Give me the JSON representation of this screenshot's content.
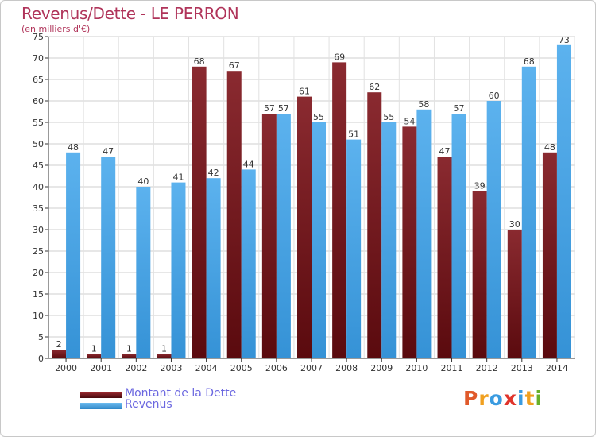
{
  "chart_data": {
    "type": "bar",
    "title": "Revenus/Dette - LE PERRON",
    "subtitle": "(en milliers d'€)",
    "xlabel": "",
    "ylabel": "",
    "categories": [
      "2000",
      "2001",
      "2002",
      "2003",
      "2004",
      "2005",
      "2006",
      "2007",
      "2008",
      "2009",
      "2010",
      "2011",
      "2012",
      "2013",
      "2014"
    ],
    "series": [
      {
        "name": "Montant de la Dette",
        "color": "#7a1a1f",
        "values": [
          2,
          1,
          1,
          1,
          68,
          67,
          57,
          61,
          69,
          62,
          54,
          47,
          39,
          30,
          48
        ]
      },
      {
        "name": "Revenus",
        "color": "#4da6e6",
        "values": [
          48,
          47,
          40,
          41,
          42,
          44,
          57,
          55,
          51,
          55,
          58,
          57,
          60,
          68,
          73
        ]
      }
    ],
    "ylim": [
      0,
      75
    ],
    "ytick_step": 5,
    "grid": true,
    "legend": "bottom-left"
  },
  "logo": {
    "text": "Proxiti",
    "colors": [
      "#e05a2b",
      "#f0a020",
      "#3a9be0",
      "#e0342b",
      "#3a9be0",
      "#f0a020",
      "#69b02a"
    ]
  }
}
